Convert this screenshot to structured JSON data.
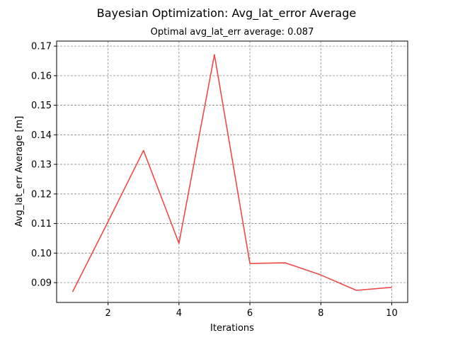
{
  "chart_data": {
    "type": "line",
    "title": "Bayesian Optimization: Avg_lat_error Average",
    "subtitle": "Optimal avg_lat_err average: 0.087",
    "xlabel": "Iterations",
    "ylabel": "Avg_lat_err Average [m]",
    "xlim": [
      0.55,
      10.45
    ],
    "ylim": [
      0.0833,
      0.1717
    ],
    "xticks": [
      2,
      4,
      6,
      8,
      10
    ],
    "xtick_labels": [
      "2",
      "4",
      "6",
      "8",
      "10"
    ],
    "yticks": [
      0.09,
      0.1,
      0.11,
      0.12,
      0.13,
      0.14,
      0.15,
      0.16,
      0.17
    ],
    "ytick_labels": [
      "0.09",
      "0.10",
      "0.11",
      "0.12",
      "0.13",
      "0.14",
      "0.15",
      "0.16",
      "0.17"
    ],
    "grid": true,
    "series": [
      {
        "color": "#f04848",
        "x": [
          1,
          2,
          3,
          4,
          5,
          6,
          7,
          8,
          9,
          10
        ],
        "y": [
          0.0869,
          0.1106,
          0.1347,
          0.1033,
          0.1671,
          0.0965,
          0.0967,
          0.0926,
          0.0874,
          0.0884
        ]
      }
    ]
  }
}
